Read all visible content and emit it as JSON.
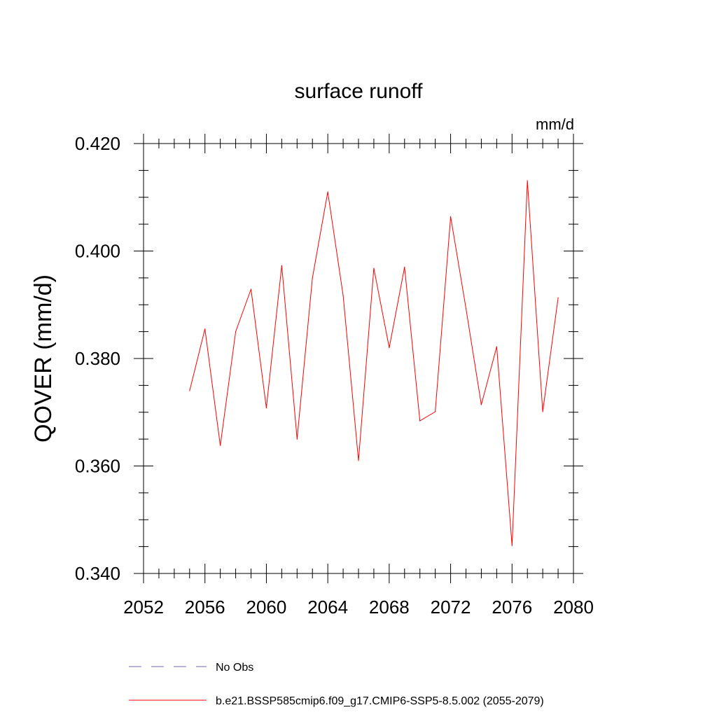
{
  "chart_data": {
    "type": "line",
    "title": "surface runoff",
    "units_label": "mm/d",
    "ylabel": "QOVER  (mm/d)",
    "xlabel": "",
    "xlim": [
      2052,
      2080
    ],
    "ylim": [
      0.34,
      0.42
    ],
    "x_ticks": [
      2052,
      2056,
      2060,
      2064,
      2068,
      2072,
      2076,
      2080
    ],
    "x_tick_labels": [
      "2052",
      "2056",
      "2060",
      "2064",
      "2068",
      "2072",
      "2076",
      "2080"
    ],
    "y_ticks": [
      0.34,
      0.36,
      0.38,
      0.4,
      0.42
    ],
    "y_tick_labels": [
      "0.340",
      "0.360",
      "0.380",
      "0.400",
      "0.420"
    ],
    "grid": false,
    "legend_position": "bottom-left, below plot",
    "series": [
      {
        "name": "b.e21.BSSP585cmip6.f09_g17.CMIP6-SSP5-8.5.002 (2055-2079)",
        "color": "#ff0000",
        "x": [
          2055,
          2056,
          2057,
          2058,
          2059,
          2060,
          2061,
          2062,
          2063,
          2064,
          2065,
          2066,
          2067,
          2068,
          2069,
          2070,
          2071,
          2072,
          2073,
          2074,
          2075,
          2076,
          2077,
          2078,
          2079
        ],
        "values": [
          0.374,
          0.3855,
          0.3638,
          0.385,
          0.3929,
          0.3708,
          0.3973,
          0.365,
          0.395,
          0.411,
          0.3917,
          0.361,
          0.3968,
          0.382,
          0.397,
          0.3684,
          0.3701,
          0.4064,
          0.3893,
          0.3714,
          0.3822,
          0.3452,
          0.4131,
          0.3701,
          0.3913
        ]
      }
    ],
    "legend": [
      {
        "label": "No Obs",
        "color": "#6b6bbf",
        "style": "dashed"
      },
      {
        "label": "b.e21.BSSP585cmip6.f09_g17.CMIP6-SSP5-8.5.002 (2055-2079)",
        "color": "#ff0000",
        "style": "solid"
      }
    ]
  }
}
